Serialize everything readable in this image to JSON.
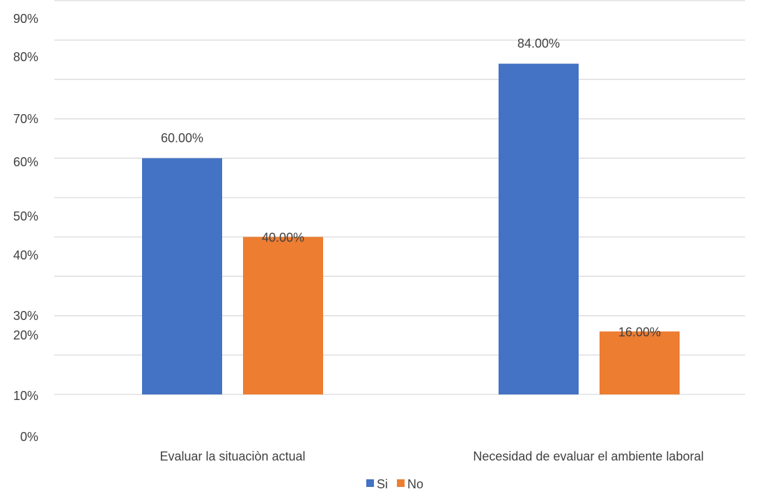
{
  "chart_data": {
    "type": "bar",
    "title": "",
    "xlabel": "",
    "ylabel": "",
    "categories": [
      "Evaluar la situaciòn actual",
      "Necesidad de evaluar el ambiente laboral"
    ],
    "series": [
      {
        "name": "Si",
        "values": [
          60,
          84
        ],
        "labels": [
          "60.00%",
          "84.00%"
        ],
        "color": "#4472c4"
      },
      {
        "name": "No",
        "values": [
          40,
          16
        ],
        "labels": [
          "40.00%",
          "16.00%"
        ],
        "color": "#ed7d31"
      }
    ],
    "ylim": [
      0,
      100
    ],
    "y_tick_labels": [
      "0%",
      "10%",
      "20%",
      "30%",
      "40%",
      "50%",
      "60%",
      "70%",
      "80%",
      "90%"
    ],
    "grid": true,
    "legend_position": "bottom"
  }
}
